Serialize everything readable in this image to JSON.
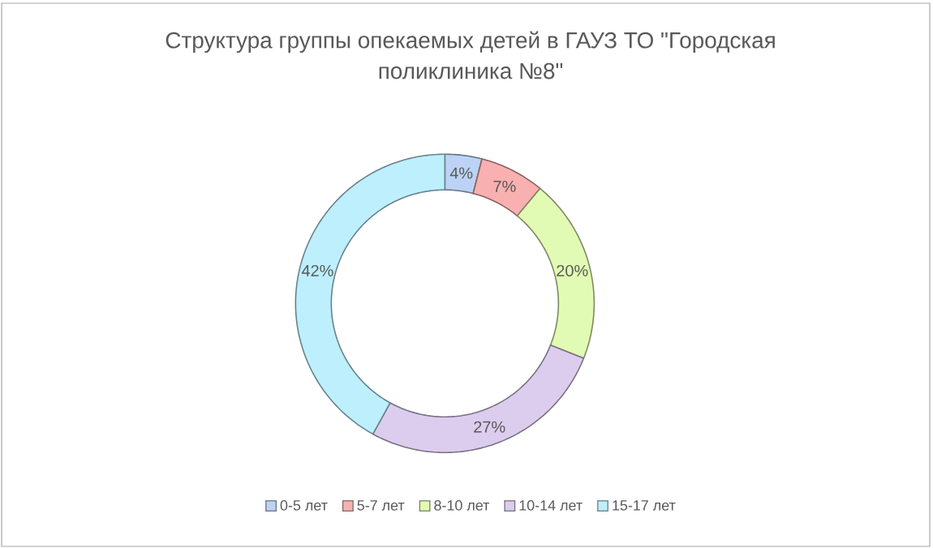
{
  "chart_data": {
    "type": "donut",
    "title": "Структура группы опекаемых детей в ГАУЗ ТО \"Городская поликлиника №8\"",
    "categories": [
      "0-5 лет",
      "5-7 лет",
      "8-10 лет",
      "10-14 лет",
      "15-17 лет"
    ],
    "values": [
      4,
      7,
      20,
      27,
      42
    ],
    "value_labels": [
      "4%",
      "7%",
      "20%",
      "27%",
      "42%"
    ],
    "colors": [
      "#bcd3f5",
      "#f9b0b0",
      "#e2fbb4",
      "#dccdee",
      "#bdeffd"
    ],
    "legend": "bottom"
  }
}
